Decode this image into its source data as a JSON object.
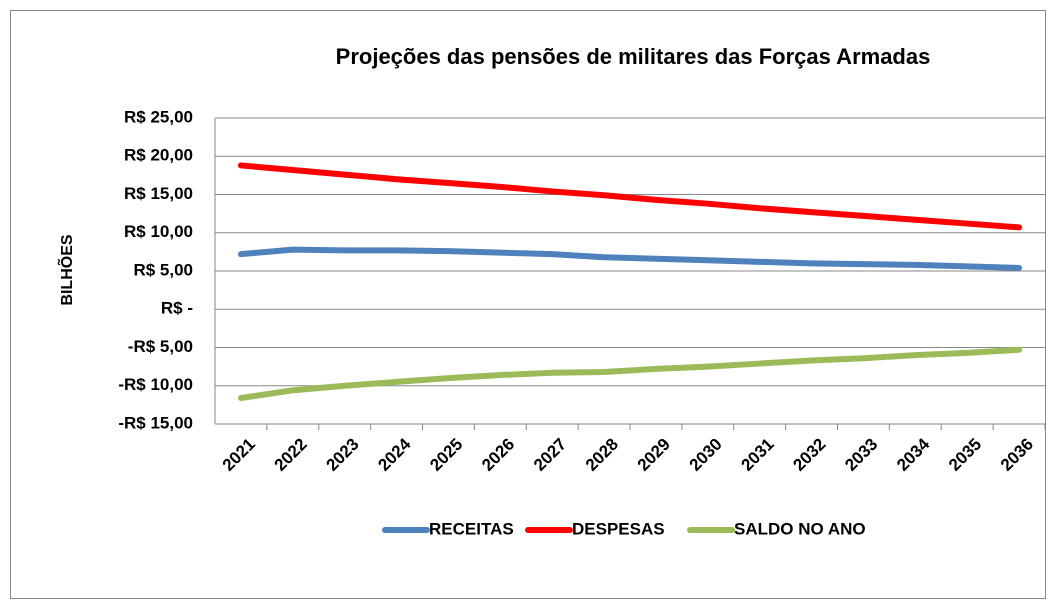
{
  "chart_data": {
    "type": "line",
    "title": "Projeções das pensões de militares das Forças Armadas",
    "y_label": "BILHÕES",
    "categories": [
      "2021",
      "2022",
      "2023",
      "2024",
      "2025",
      "2026",
      "2027",
      "2028",
      "2029",
      "2030",
      "2031",
      "2032",
      "2033",
      "2034",
      "2035",
      "2036"
    ],
    "series": [
      {
        "name": "RECEITAS",
        "color": "#4f81bd",
        "values": [
          7.2,
          7.8,
          7.7,
          7.7,
          7.6,
          7.4,
          7.2,
          6.8,
          6.6,
          6.4,
          6.2,
          6.0,
          5.9,
          5.8,
          5.6,
          5.4
        ]
      },
      {
        "name": "DESPESAS",
        "color": "#ff0000",
        "values": [
          18.8,
          18.2,
          17.6,
          17.0,
          16.5,
          16.0,
          15.4,
          14.9,
          14.3,
          13.8,
          13.2,
          12.7,
          12.2,
          11.7,
          11.2,
          10.7
        ]
      },
      {
        "name": "SALDO NO ANO",
        "color": "#9bbb59",
        "values": [
          -11.6,
          -10.6,
          -10.0,
          -9.5,
          -9.0,
          -8.6,
          -8.3,
          -8.2,
          -7.8,
          -7.5,
          -7.1,
          -6.7,
          -6.4,
          -6.0,
          -5.7,
          -5.3
        ]
      }
    ],
    "ylim": [
      -15,
      25
    ],
    "yticks": [
      {
        "value": -15,
        "label": "-R$ 15,00"
      },
      {
        "value": -10,
        "label": "-R$ 10,00"
      },
      {
        "value": -5,
        "label": "-R$ 5,00"
      },
      {
        "value": 0,
        "label": "R$ -"
      },
      {
        "value": 5,
        "label": "R$ 5,00"
      },
      {
        "value": 10,
        "label": "R$ 10,00"
      },
      {
        "value": 15,
        "label": "R$ 15,00"
      },
      {
        "value": 20,
        "label": "R$ 20,00"
      },
      {
        "value": 25,
        "label": "R$ 25,00"
      }
    ],
    "grid": true,
    "legend": "bottom"
  }
}
